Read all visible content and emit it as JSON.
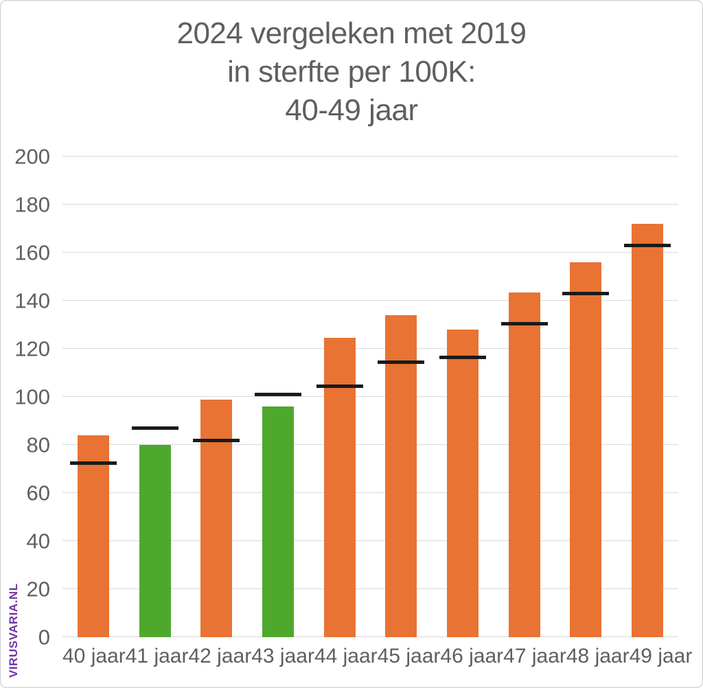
{
  "watermark": {
    "text": "VIRUSVARIA.NL",
    "color": "#7434A4"
  },
  "chart_data": {
    "type": "bar",
    "title": "2024 vergeleken met 2019 in sterfte per 100K: 40-49 jaar",
    "title_lines": [
      "2024 vergeleken met 2019",
      "in sterfte per 100K:",
      "40-49 jaar"
    ],
    "title_color": "#5f5f5f",
    "categories": [
      "40 jaar",
      "41 jaar",
      "42 jaar",
      "43 jaar",
      "44 jaar",
      "45 jaar",
      "46 jaar",
      "47 jaar",
      "48 jaar",
      "49 jaar"
    ],
    "series": [
      {
        "name": "2024",
        "style": "bar",
        "values": [
          84,
          80,
          99,
          96,
          124.5,
          134,
          128,
          143.5,
          156,
          172
        ]
      },
      {
        "name": "2019",
        "style": "tick-marker",
        "values": [
          72.5,
          87,
          82,
          101,
          104.5,
          114.5,
          116.5,
          130.5,
          143,
          163
        ]
      }
    ],
    "bar_colors": [
      "#E87333",
      "#4FA82E",
      "#E87333",
      "#4FA82E",
      "#E87333",
      "#E87333",
      "#E87333",
      "#E87333",
      "#E87333",
      "#E87333"
    ],
    "marker_color": "#1a1a1a",
    "ylim": [
      0,
      200
    ],
    "yticks": [
      0,
      20,
      40,
      60,
      80,
      100,
      120,
      140,
      160,
      180,
      200
    ],
    "xlabel": "",
    "ylabel": "",
    "grid": true,
    "legend": false
  }
}
